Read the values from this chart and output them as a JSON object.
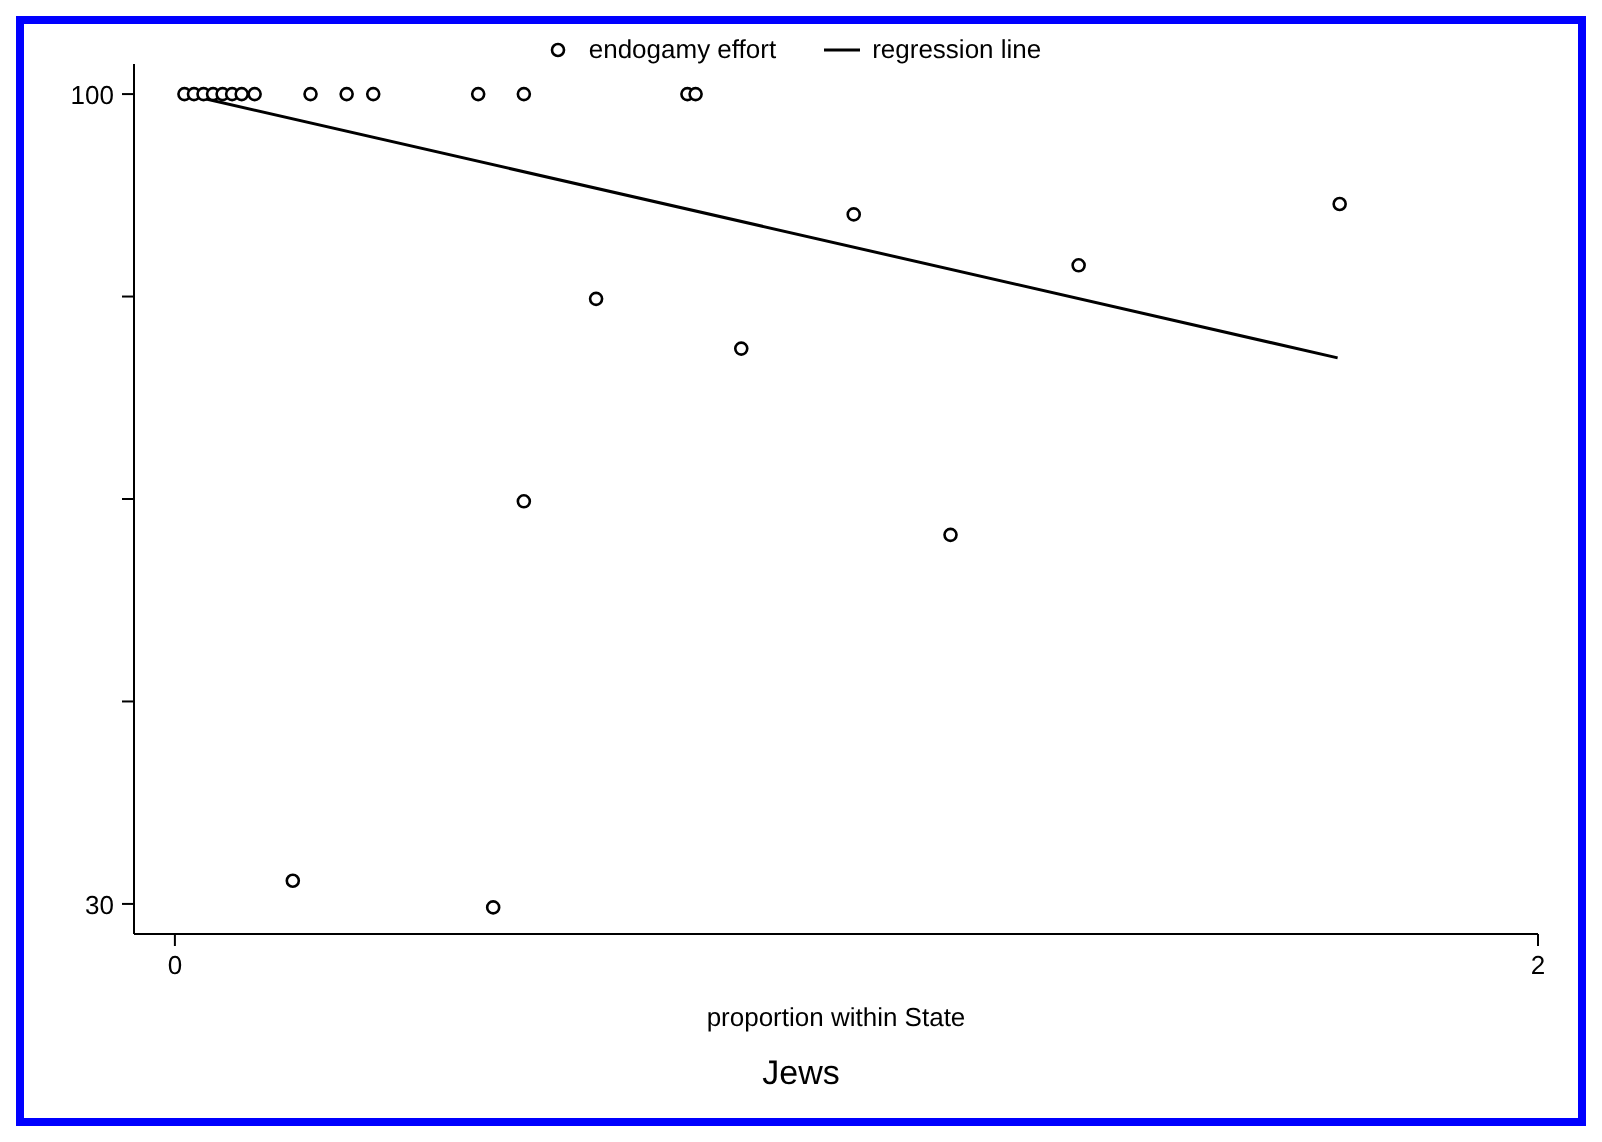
{
  "chart_data": {
    "type": "scatter",
    "title": "Jews",
    "xlabel": "proportion within State",
    "xlim": [
      -0.06,
      2.0
    ],
    "xticks": [
      0,
      2
    ],
    "ylim": [
      27.4,
      102.6
    ],
    "yticks": [
      30,
      {
        "value": 47.5,
        "label": null
      },
      {
        "value": 65,
        "label": null
      },
      {
        "value": 82.5,
        "label": null
      },
      100
    ],
    "legend": "top",
    "grid": false,
    "series": [
      {
        "name": "endogamy effort",
        "marker": "circle",
        "color": "#000000",
        "x": [
          0.014,
          0.028,
          0.042,
          0.056,
          0.07,
          0.084,
          0.098,
          0.117,
          0.199,
          0.252,
          0.291,
          0.445,
          0.512,
          0.752,
          0.764,
          0.618,
          0.831,
          0.512,
          0.996,
          1.326,
          1.709,
          1.138,
          0.173,
          0.467
        ],
        "values": [
          100,
          100,
          100,
          100,
          100,
          100,
          100,
          100,
          100,
          100,
          100,
          100,
          100,
          100,
          100,
          82.3,
          78.0,
          64.8,
          89.6,
          85.2,
          90.5,
          61.9,
          32.0,
          29.7
        ]
      },
      {
        "name": "regression line",
        "type": "line",
        "marker": "none",
        "color": "#000000",
        "x": [
          0.014,
          1.706
        ],
        "values": [
          100,
          77.2
        ]
      }
    ]
  }
}
